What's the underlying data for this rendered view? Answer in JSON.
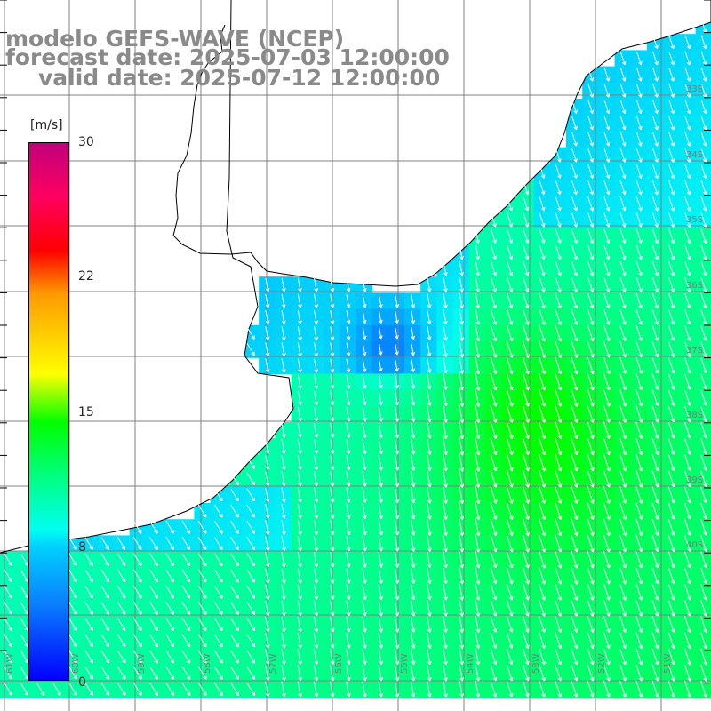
{
  "title": {
    "line1": "modelo GEFS-WAVE (NCEP)",
    "line2": "forecast date: 2025-07-03 12:00:00",
    "line3": "valid date: 2025-07-12 12:00:00"
  },
  "colorbar": {
    "unit": "[m/s]",
    "ticks": [
      "30",
      "22",
      "15",
      "8",
      "0"
    ],
    "min": 0,
    "max": 30
  },
  "map": {
    "lon_labels": [
      "61W",
      "60W",
      "59W",
      "58W",
      "57W",
      "56W",
      "55W",
      "54W",
      "53W",
      "52W",
      "51W"
    ],
    "lat_labels": [
      "33S",
      "34S",
      "35S",
      "36S",
      "37S",
      "38S",
      "39S",
      "40S"
    ],
    "colors": {
      "land": "#ffffff",
      "coast": "#000000",
      "grid": "#808080",
      "arrow": "#ffffff"
    }
  }
}
